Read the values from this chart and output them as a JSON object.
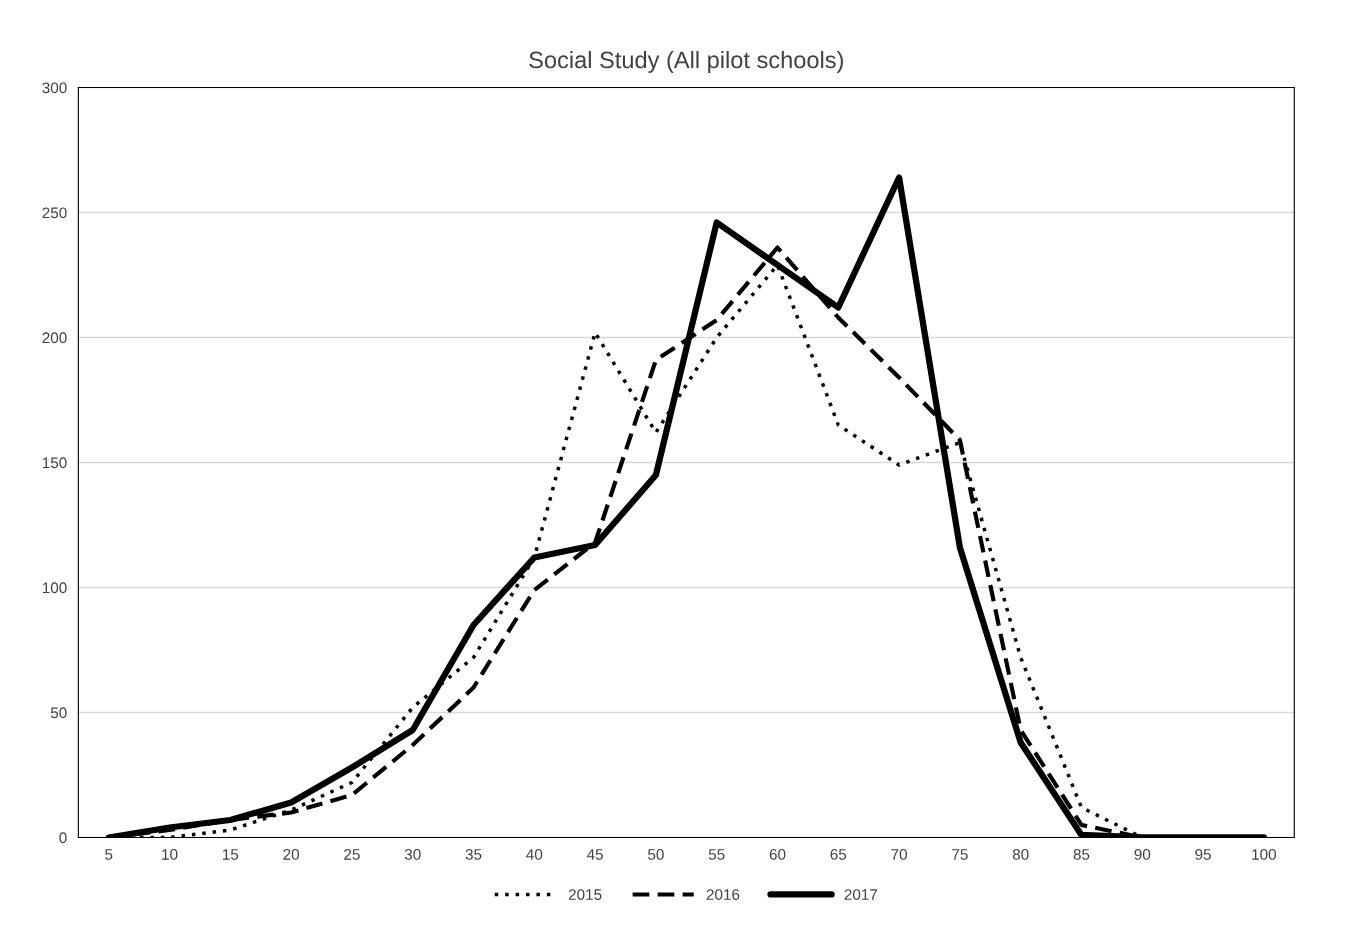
{
  "chart_data": {
    "type": "line",
    "title": "Social Study (All pilot schools)",
    "categories": [
      "5",
      "10",
      "15",
      "20",
      "25",
      "30",
      "35",
      "40",
      "45",
      "50",
      "55",
      "60",
      "65",
      "70",
      "75",
      "80",
      "85",
      "90",
      "95",
      "100"
    ],
    "series": [
      {
        "name": "2015",
        "color": "#000000",
        "line_style": "dotted",
        "values": [
          0,
          0,
          3,
          11,
          22,
          52,
          72,
          112,
          202,
          162,
          200,
          229,
          165,
          149,
          158,
          72,
          12,
          0,
          0,
          0
        ]
      },
      {
        "name": "2016",
        "color": "#000000",
        "line_style": "dashed",
        "values": [
          0,
          3,
          7,
          10,
          17,
          37,
          60,
          99,
          118,
          191,
          207,
          236,
          208,
          184,
          159,
          43,
          5,
          0,
          0,
          0
        ]
      },
      {
        "name": "2017",
        "color": "#000000",
        "line_style": "solid",
        "values": [
          0,
          4,
          7,
          14,
          28,
          43,
          85,
          112,
          117,
          145,
          246,
          229,
          212,
          264,
          116,
          38,
          1,
          0,
          0,
          0
        ]
      }
    ],
    "ylim": [
      0,
      300
    ],
    "yticks": [
      0,
      50,
      100,
      150,
      200,
      250,
      300
    ],
    "grid": "y",
    "legend": "bottom",
    "marker": "none"
  }
}
